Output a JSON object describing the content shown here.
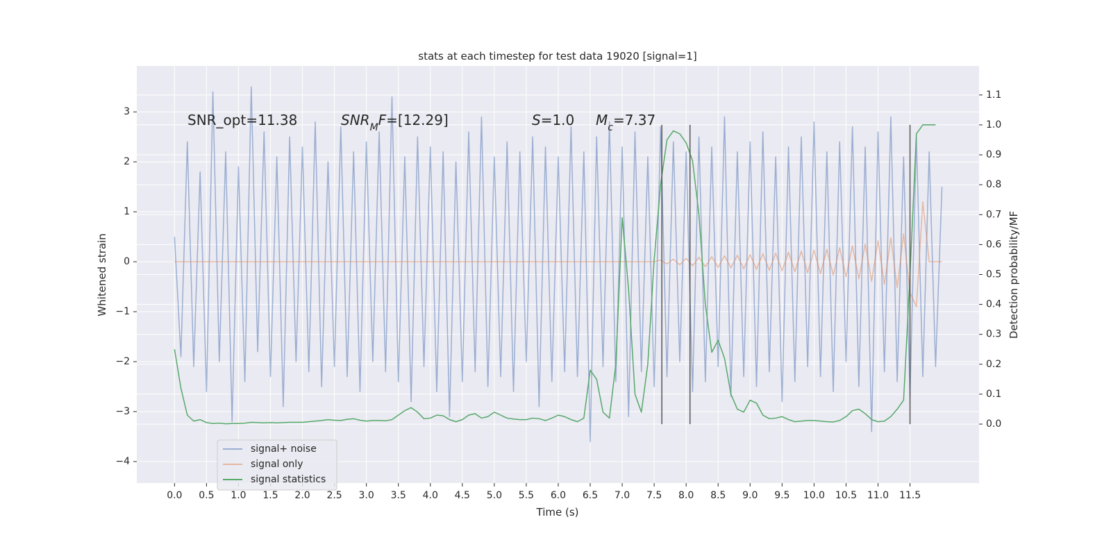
{
  "chart_data": {
    "type": "line",
    "title": "stats at each timestep for test data 19020 [signal=1]",
    "xlabel": "Time (s)",
    "ylabel": "Whitened strain",
    "y2label": "Detection probability/MF",
    "xlim": [
      -0.59,
      12.58
    ],
    "ylim": [
      -4.43,
      3.92
    ],
    "y2lim": [
      -0.197,
      1.197
    ],
    "xticks": [
      {
        "value": 0,
        "label": "0.0"
      },
      0.5,
      {
        "value": 1,
        "label": "1.0"
      },
      1.5,
      {
        "value": 2,
        "label": "2.0"
      },
      2.5,
      {
        "value": 3,
        "label": "3.0"
      },
      3.5,
      {
        "value": 4,
        "label": "4.0"
      },
      4.5,
      {
        "value": 5,
        "label": "5.0"
      },
      5.5,
      {
        "value": 6,
        "label": "6.0"
      },
      6.5,
      {
        "value": 7,
        "label": "7.0"
      },
      7.5,
      {
        "value": 8,
        "label": "8.0"
      },
      8.5,
      {
        "value": 9,
        "label": "9.0"
      },
      9.5,
      {
        "value": 10,
        "label": "10.0"
      },
      10.5,
      {
        "value": 11,
        "label": "11.0"
      },
      11.5
    ],
    "yticks": [
      {
        "value": -4,
        "label": "−4"
      },
      {
        "value": -3,
        "label": "−3"
      },
      {
        "value": -2,
        "label": "−2"
      },
      {
        "value": -1,
        "label": "−1"
      },
      0,
      1,
      2,
      3
    ],
    "y2ticks": [
      {
        "value": 0,
        "label": "0.0"
      },
      0.1,
      0.2,
      0.3,
      0.4,
      0.5,
      0.6,
      0.7,
      0.8,
      0.9,
      {
        "value": 1,
        "label": "1.0"
      },
      1.1
    ],
    "grid": true,
    "legend_loc": "lower left",
    "background": "#eaeaf2",
    "x": [
      0.0,
      0.1,
      0.2,
      0.3,
      0.4,
      0.5,
      0.6,
      0.7,
      0.8,
      0.9,
      1.0,
      1.1,
      1.2,
      1.3,
      1.4,
      1.5,
      1.6,
      1.7,
      1.8,
      1.9,
      2.0,
      2.1,
      2.2,
      2.3,
      2.4,
      2.5,
      2.6,
      2.7,
      2.8,
      2.9,
      3.0,
      3.1,
      3.2,
      3.3,
      3.4,
      3.5,
      3.6,
      3.7,
      3.8,
      3.9,
      4.0,
      4.1,
      4.2,
      4.3,
      4.4,
      4.5,
      4.6,
      4.7,
      4.8,
      4.9,
      5.0,
      5.1,
      5.2,
      5.3,
      5.4,
      5.5,
      5.6,
      5.7,
      5.8,
      5.9,
      6.0,
      6.1,
      6.2,
      6.3,
      6.4,
      6.5,
      6.6,
      6.7,
      6.8,
      6.9,
      7.0,
      7.1,
      7.2,
      7.3,
      7.4,
      7.5,
      7.6,
      7.7,
      7.8,
      7.9,
      8.0,
      8.1,
      8.2,
      8.3,
      8.4,
      8.5,
      8.6,
      8.7,
      8.8,
      8.9,
      9.0,
      9.1,
      9.2,
      9.3,
      9.4,
      9.5,
      9.6,
      9.7,
      9.8,
      9.9,
      10.0,
      10.1,
      10.2,
      10.3,
      10.4,
      10.5,
      10.6,
      10.7,
      10.8,
      10.9,
      11.0,
      11.1,
      11.2,
      11.3,
      11.4,
      11.5,
      11.6,
      11.7,
      11.8,
      11.9,
      12.0
    ],
    "series": [
      {
        "name": "signal+ noise",
        "color": "#4c72b0",
        "alpha": 0.5,
        "values": [
          0.5,
          -1.9,
          2.4,
          -2.1,
          1.8,
          -2.6,
          3.4,
          -2.0,
          2.2,
          -3.2,
          1.9,
          -2.4,
          3.5,
          -1.8,
          2.6,
          -2.3,
          2.1,
          -2.9,
          2.5,
          -2.0,
          2.3,
          -2.2,
          2.8,
          -2.5,
          2.0,
          -2.1,
          2.7,
          -2.3,
          2.2,
          -2.6,
          2.4,
          -2.0,
          2.6,
          -2.2,
          3.3,
          -2.4,
          2.1,
          -2.8,
          2.5,
          -2.1,
          2.3,
          -2.6,
          2.2,
          -3.1,
          2.0,
          -2.4,
          2.6,
          -2.2,
          2.9,
          -2.5,
          2.1,
          -2.3,
          2.4,
          -2.6,
          2.2,
          -2.0,
          2.5,
          -2.9,
          2.3,
          -2.4,
          2.1,
          -2.2,
          2.7,
          -2.3,
          2.2,
          -3.6,
          2.5,
          -2.1,
          2.8,
          -2.4,
          2.3,
          -3.1,
          2.6,
          -2.2,
          2.1,
          -2.5,
          2.7,
          -2.3,
          2.4,
          -2.0,
          2.2,
          -2.6,
          2.5,
          -2.4,
          2.3,
          -2.1,
          2.9,
          -2.7,
          2.2,
          -2.3,
          2.4,
          -2.5,
          2.6,
          -2.2,
          2.1,
          -2.8,
          2.3,
          -2.4,
          2.5,
          -2.1,
          2.8,
          -2.3,
          2.2,
          -2.6,
          2.4,
          -2.0,
          2.7,
          -2.5,
          2.3,
          -3.4,
          2.6,
          -2.2,
          2.9,
          -2.4,
          2.1,
          -2.7,
          2.5,
          -2.3,
          2.2,
          -2.1,
          1.5
        ]
      },
      {
        "name": "signal only",
        "color": "#dd8452",
        "alpha": 0.5,
        "values": [
          0,
          0,
          0,
          0,
          0,
          0,
          0,
          0,
          0,
          0,
          0,
          0,
          0,
          0,
          0,
          0,
          0,
          0,
          0,
          0,
          0,
          0,
          0,
          0,
          0,
          0,
          0,
          0,
          0,
          0,
          0,
          0,
          0,
          0,
          0,
          0,
          0,
          0,
          0,
          0,
          0,
          0,
          0,
          0,
          0,
          0,
          0,
          0,
          0,
          0,
          0,
          0,
          0,
          0,
          0,
          0,
          0,
          0,
          0,
          0,
          0,
          0,
          0,
          0,
          0,
          0,
          0,
          0,
          0,
          0,
          0,
          0,
          0,
          0,
          0,
          0,
          0.03,
          -0.04,
          0.05,
          -0.06,
          0.07,
          -0.08,
          0.09,
          -0.1,
          0.1,
          -0.11,
          0.12,
          -0.12,
          0.13,
          -0.14,
          0.14,
          -0.15,
          0.16,
          -0.17,
          0.17,
          -0.18,
          0.19,
          -0.2,
          0.21,
          -0.22,
          0.23,
          -0.24,
          0.25,
          -0.27,
          0.28,
          -0.3,
          0.32,
          -0.34,
          0.36,
          -0.39,
          0.42,
          -0.45,
          0.48,
          -0.52,
          0.56,
          -0.62,
          -0.9,
          1.2,
          0,
          0,
          0
        ]
      },
      {
        "name": "signal statistics",
        "color": "#55a868",
        "alpha": 1,
        "axis": "y2",
        "values": [
          0.25,
          0.12,
          0.03,
          0.01,
          0.015,
          0.005,
          0.002,
          0.003,
          0.001,
          0.002,
          0.002,
          0.003,
          0.006,
          0.005,
          0.004,
          0.005,
          0.004,
          0.005,
          0.006,
          0.006,
          0.006,
          0.008,
          0.01,
          0.012,
          0.015,
          0.013,
          0.012,
          0.016,
          0.018,
          0.013,
          0.01,
          0.012,
          0.012,
          0.011,
          0.015,
          0.03,
          0.045,
          0.055,
          0.04,
          0.018,
          0.02,
          0.03,
          0.028,
          0.015,
          0.008,
          0.015,
          0.03,
          0.035,
          0.02,
          0.025,
          0.04,
          0.03,
          0.02,
          0.017,
          0.015,
          0.015,
          0.02,
          0.018,
          0.012,
          0.02,
          0.03,
          0.025,
          0.015,
          0.008,
          0.02,
          0.18,
          0.15,
          0.04,
          0.02,
          0.2,
          0.69,
          0.45,
          0.1,
          0.04,
          0.2,
          0.55,
          0.8,
          0.95,
          0.98,
          0.97,
          0.94,
          0.88,
          0.7,
          0.4,
          0.24,
          0.28,
          0.22,
          0.1,
          0.05,
          0.04,
          0.08,
          0.07,
          0.03,
          0.018,
          0.02,
          0.025,
          0.015,
          0.008,
          0.01,
          0.012,
          0.012,
          0.01,
          0.008,
          0.007,
          0.012,
          0.025,
          0.045,
          0.05,
          0.035,
          0.015,
          0.008,
          0.01,
          0.025,
          0.05,
          0.08,
          0.5,
          0.97,
          1.0,
          1.0,
          1.0,
          null
        ]
      }
    ],
    "vlines": {
      "x": [
        7.62,
        8.06,
        11.5
      ],
      "ymin": 0,
      "ymax": 1,
      "axis": "y2",
      "color": "#555555"
    },
    "annotations": [
      {
        "parts": [
          {
            "text": "SNR_opt=11.38"
          }
        ]
      },
      {
        "parts": [
          {
            "text": "SNR",
            "italic": true
          },
          {
            "text": "M",
            "italic": true,
            "sub": true
          },
          {
            "text": "F",
            "italic": true
          },
          {
            "text": "=[12.29]"
          }
        ]
      },
      {
        "parts": [
          {
            "text": "S",
            "italic": true
          },
          {
            "text": "=1.0"
          }
        ]
      },
      {
        "parts": [
          {
            "text": "M",
            "italic": true
          },
          {
            "text": "c",
            "italic": true,
            "sub": true
          },
          {
            "text": "=7.37"
          }
        ]
      }
    ]
  }
}
